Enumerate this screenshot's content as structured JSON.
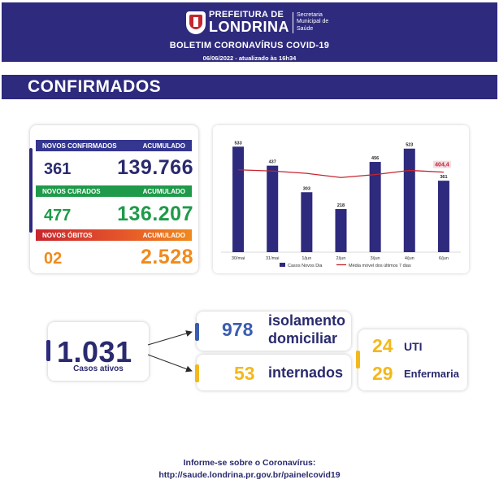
{
  "header": {
    "brand_top": "PREFEITURA DE",
    "brand_main": "LONDRINA",
    "brand_sub": [
      "Secretaria",
      "Municipal de",
      "Saúde"
    ],
    "title": "BOLETIM CORONAVÍRUS COVID-19",
    "date": "06/06/2022 - atualizado às 16h34"
  },
  "section": {
    "title": "CONFIRMADOS"
  },
  "stats": {
    "confirmed": {
      "label": "NOVOS CONFIRMADOS",
      "acc_label": "ACUMULADO",
      "new": "361",
      "total": "139.766"
    },
    "cured": {
      "label": "NOVOS CURADOS",
      "acc_label": "ACUMULADO",
      "new": "477",
      "total": "136.207"
    },
    "deaths": {
      "label": "NOVOS ÓBITOS",
      "acc_label": "ACUMULADO",
      "new": "02",
      "total": "2.528"
    }
  },
  "chart_data": {
    "type": "bar",
    "categories": [
      "30/mai",
      "31/mai",
      "1/jun",
      "2/jun",
      "3/jun",
      "4/jun",
      "6/jun"
    ],
    "series": [
      {
        "name": "Casos Novos Dia",
        "type": "bar",
        "values": [
          533,
          437,
          303,
          218,
          456,
          523,
          361
        ],
        "color": "#2e2a7d"
      },
      {
        "name": "Média móvel dos últimos 7 dias",
        "type": "line",
        "values": [
          416,
          410,
          398,
          377,
          392,
          413,
          404.4
        ],
        "color": "#c4262e"
      }
    ],
    "highlight_label": "404,4",
    "ylim": [
      0,
      600
    ],
    "grid": false,
    "legend": "bottom"
  },
  "active": {
    "value": "1.031",
    "label": "Casos ativos"
  },
  "isolation": {
    "value": "978",
    "label_1": "isolamento",
    "label_2": "domiciliar"
  },
  "hospitalized": {
    "value": "53",
    "label": "internados"
  },
  "icu": {
    "value": "24",
    "label": "UTI"
  },
  "ward": {
    "value": "29",
    "label": "Enfermaria"
  },
  "footer": {
    "line1": "Informe-se sobre o Coronavírus:",
    "line2": "http://saude.londrina.pr.gov.br/painelcovid19"
  },
  "colors": {
    "navy": "#2e2a7d",
    "green": "#1f9a4a",
    "orange": "#f08a1c",
    "yellow": "#f3b81c",
    "red": "#c4262e"
  }
}
